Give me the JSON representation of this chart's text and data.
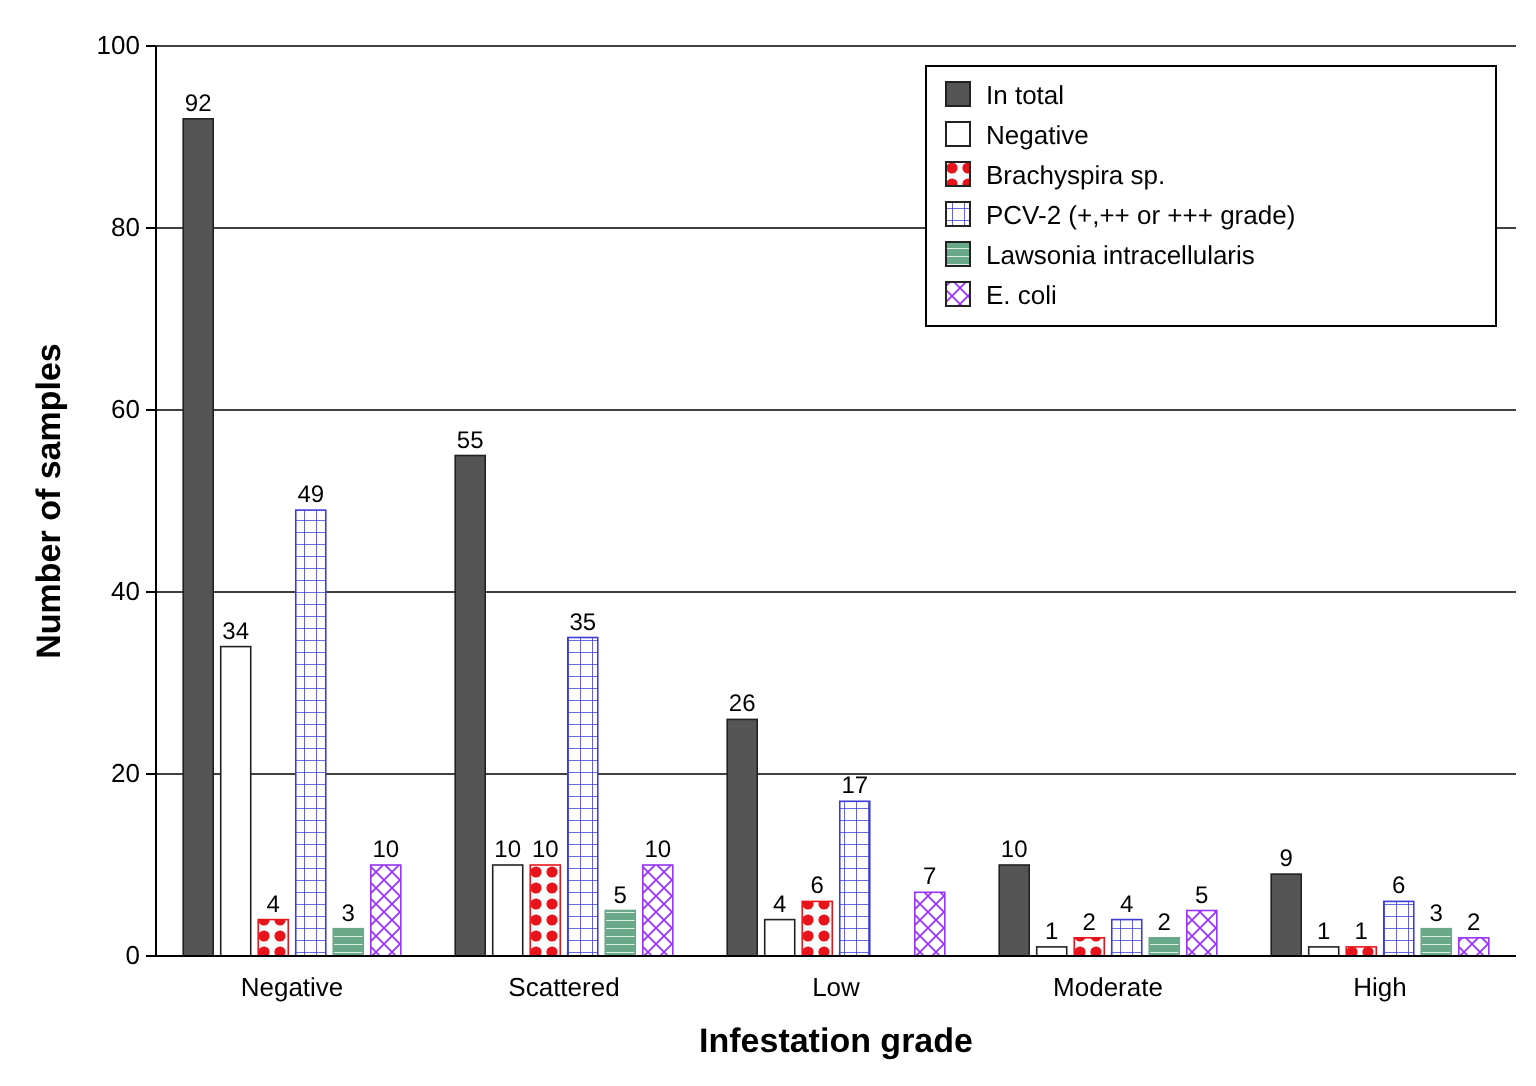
{
  "chart_data": {
    "type": "bar",
    "xlabel": "Infestation grade",
    "ylabel": "Number of samples",
    "categories": [
      "Negative",
      "Scattered",
      "Low",
      "Moderate",
      "High"
    ],
    "series": [
      {
        "name": "In total",
        "color": "#555555",
        "values": [
          92,
          55,
          26,
          10,
          9
        ]
      },
      {
        "name": "Negative",
        "color": "#ffffff",
        "values": [
          34,
          10,
          4,
          1,
          1
        ]
      },
      {
        "name": "Brachyspira sp.",
        "color": "#e8141c",
        "values": [
          4,
          10,
          6,
          2,
          1
        ]
      },
      {
        "name": "PCV-2 (+,++ or +++ grade)",
        "color": "#3c3cd8",
        "values": [
          49,
          35,
          17,
          4,
          6
        ]
      },
      {
        "name": "Lawsonia intracellularis",
        "color": "#6aa88a",
        "values": [
          3,
          5,
          null,
          2,
          3
        ]
      },
      {
        "name": "E. coli",
        "color": "#9933ff",
        "values": [
          10,
          10,
          7,
          5,
          2
        ]
      }
    ],
    "ylim": [
      0,
      100
    ],
    "yticks": [
      0,
      20,
      40,
      60,
      80,
      100
    ],
    "grid": "y",
    "legend": "top right",
    "data_labels": true
  }
}
